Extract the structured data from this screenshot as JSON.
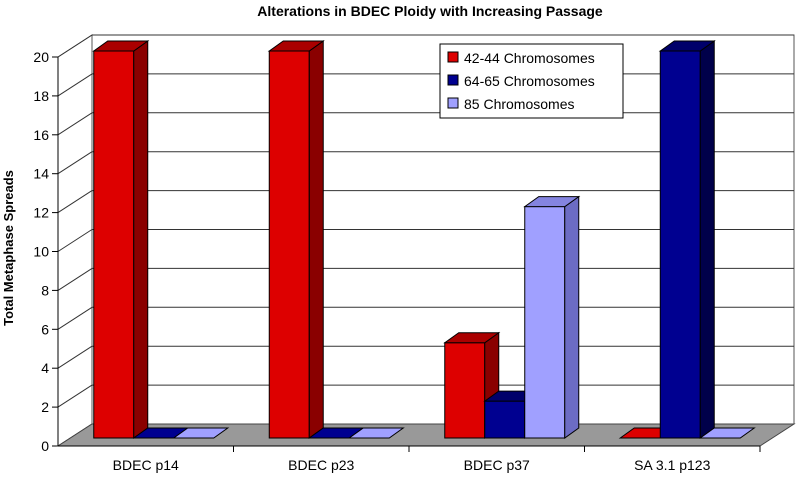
{
  "chart_data": {
    "type": "bar",
    "title": "Alterations in BDEC Ploidy with Increasing Passage",
    "xlabel": "",
    "ylabel": "Total Metaphase Spreads",
    "categories": [
      "BDEC p14",
      "BDEC p23",
      "BDEC p37",
      "SA 3.1 p123"
    ],
    "yticks": [
      "0",
      "2",
      "4",
      "6",
      "8",
      "10",
      "12",
      "14",
      "16",
      "18",
      "20"
    ],
    "ylim": [
      0,
      20
    ],
    "grid": true,
    "legend_position": "top-right",
    "series": [
      {
        "name": "42-44 Chromosomes",
        "values": [
          20,
          20,
          5,
          0
        ],
        "color": "#dd0000",
        "side": "#8a0000",
        "top": "#aa0000"
      },
      {
        "name": "64-65 Chromosomes",
        "values": [
          0,
          0,
          2,
          20
        ],
        "color": "#000090",
        "side": "#00004a",
        "top": "#00006a"
      },
      {
        "name": "85 Chromosomes",
        "values": [
          0,
          0,
          12,
          0
        ],
        "color": "#a0a0ff",
        "side": "#6c6cc4",
        "top": "#8484e0"
      }
    ]
  }
}
